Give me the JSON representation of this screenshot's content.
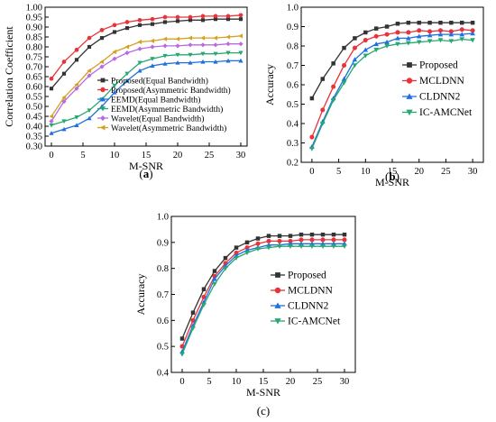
{
  "chart_data": [
    {
      "id": "a",
      "type": "line",
      "panel_label": "(a)",
      "panel_label_bold": "a",
      "xlabel": "M-SNR",
      "ylabel": "Correlation Coefficient",
      "xlim": [
        -1,
        31
      ],
      "ylim": [
        0.3,
        1.0
      ],
      "xticks": [
        0,
        5,
        10,
        15,
        20,
        25,
        30
      ],
      "yticks": [
        0.3,
        0.35,
        0.4,
        0.45,
        0.5,
        0.55,
        0.6,
        0.65,
        0.7,
        0.75,
        0.8,
        0.85,
        0.9,
        0.95,
        1.0
      ],
      "ytick_decimals": 2,
      "legend_position": "bottom-right",
      "x": [
        0,
        2,
        4,
        6,
        8,
        10,
        12,
        14,
        16,
        18,
        20,
        22,
        24,
        26,
        28,
        30
      ],
      "series": [
        {
          "name": "Proposed(Equal Bandwidth)",
          "color": "#333333",
          "marker": "square",
          "values": [
            0.59,
            0.665,
            0.735,
            0.8,
            0.845,
            0.875,
            0.895,
            0.91,
            0.915,
            0.925,
            0.93,
            0.935,
            0.935,
            0.94,
            0.94,
            0.94
          ]
        },
        {
          "name": "Proposed(Asymmetric Bandwidth)",
          "color": "#e8333a",
          "marker": "circle",
          "values": [
            0.64,
            0.725,
            0.785,
            0.845,
            0.885,
            0.91,
            0.925,
            0.935,
            0.94,
            0.95,
            0.95,
            0.95,
            0.955,
            0.955,
            0.955,
            0.96
          ]
        },
        {
          "name": "EEMD(Equal Bandwidth)",
          "color": "#1f6fe0",
          "marker": "triangle-up",
          "values": [
            0.365,
            0.385,
            0.405,
            0.44,
            0.5,
            0.57,
            0.63,
            0.68,
            0.705,
            0.715,
            0.72,
            0.72,
            0.725,
            0.725,
            0.73,
            0.73
          ]
        },
        {
          "name": "EEMD(Asymmetric Bandwidth)",
          "color": "#27a873",
          "marker": "triangle-down",
          "values": [
            0.405,
            0.425,
            0.445,
            0.48,
            0.535,
            0.605,
            0.665,
            0.72,
            0.74,
            0.755,
            0.76,
            0.76,
            0.765,
            0.765,
            0.77,
            0.77
          ]
        },
        {
          "name": "Wavelet(Equal Bandwidth)",
          "color": "#b86be0",
          "marker": "diamond",
          "values": [
            0.425,
            0.525,
            0.59,
            0.655,
            0.7,
            0.74,
            0.77,
            0.79,
            0.8,
            0.805,
            0.805,
            0.81,
            0.81,
            0.81,
            0.815,
            0.815
          ]
        },
        {
          "name": "Wavelet(Asymmetric Bandwidth)",
          "color": "#d6a021",
          "marker": "triangle-left",
          "values": [
            0.45,
            0.545,
            0.61,
            0.68,
            0.725,
            0.775,
            0.8,
            0.825,
            0.83,
            0.84,
            0.84,
            0.845,
            0.845,
            0.845,
            0.85,
            0.855
          ]
        }
      ]
    },
    {
      "id": "b",
      "type": "line",
      "panel_label": "(b)",
      "panel_label_bold": "b",
      "xlabel": "M-SNR",
      "ylabel": "Accuracy",
      "xlim": [
        -2,
        32
      ],
      "ylim": [
        0.2,
        1.0
      ],
      "xticks": [
        0,
        5,
        10,
        15,
        20,
        25,
        30
      ],
      "yticks": [
        0.2,
        0.3,
        0.4,
        0.5,
        0.6,
        0.7,
        0.8,
        0.9,
        1.0
      ],
      "ytick_decimals": 1,
      "legend_position": "right",
      "x": [
        0,
        2,
        4,
        6,
        8,
        10,
        12,
        14,
        16,
        18,
        20,
        22,
        24,
        26,
        28,
        30
      ],
      "series": [
        {
          "name": "Proposed",
          "color": "#333333",
          "marker": "square",
          "values": [
            0.53,
            0.63,
            0.71,
            0.79,
            0.84,
            0.87,
            0.89,
            0.9,
            0.915,
            0.92,
            0.92,
            0.92,
            0.92,
            0.92,
            0.92,
            0.92
          ]
        },
        {
          "name": "MCLDNN",
          "color": "#e8333a",
          "marker": "circle",
          "values": [
            0.33,
            0.47,
            0.59,
            0.7,
            0.79,
            0.83,
            0.85,
            0.86,
            0.87,
            0.87,
            0.88,
            0.875,
            0.88,
            0.875,
            0.885,
            0.88
          ]
        },
        {
          "name": "CLDNN2",
          "color": "#1f6fe0",
          "marker": "triangle-up",
          "values": [
            0.28,
            0.41,
            0.53,
            0.63,
            0.73,
            0.78,
            0.81,
            0.82,
            0.84,
            0.84,
            0.85,
            0.855,
            0.86,
            0.86,
            0.86,
            0.865
          ]
        },
        {
          "name": "IC-AMCNet",
          "color": "#27a873",
          "marker": "triangle-down",
          "values": [
            0.27,
            0.4,
            0.52,
            0.61,
            0.7,
            0.75,
            0.78,
            0.8,
            0.81,
            0.815,
            0.82,
            0.825,
            0.83,
            0.825,
            0.835,
            0.83
          ]
        }
      ]
    },
    {
      "id": "c",
      "type": "line",
      "panel_label": "(c)",
      "panel_label_bold": "",
      "xlabel": "M-SNR",
      "ylabel": "Accuracy",
      "xlim": [
        -2,
        32
      ],
      "ylim": [
        0.4,
        1.0
      ],
      "xticks": [
        0,
        5,
        10,
        15,
        20,
        25,
        30
      ],
      "yticks": [
        0.4,
        0.5,
        0.6,
        0.7,
        0.8,
        0.9,
        1.0
      ],
      "ytick_decimals": 1,
      "legend_position": "right",
      "x": [
        0,
        2,
        4,
        6,
        8,
        10,
        12,
        14,
        16,
        18,
        20,
        22,
        24,
        26,
        28,
        30
      ],
      "series": [
        {
          "name": "Proposed",
          "color": "#333333",
          "marker": "square",
          "values": [
            0.53,
            0.63,
            0.72,
            0.79,
            0.84,
            0.88,
            0.9,
            0.915,
            0.925,
            0.925,
            0.925,
            0.93,
            0.93,
            0.93,
            0.93,
            0.93
          ]
        },
        {
          "name": "MCLDNN",
          "color": "#e8333a",
          "marker": "circle",
          "values": [
            0.5,
            0.6,
            0.69,
            0.77,
            0.82,
            0.86,
            0.88,
            0.895,
            0.905,
            0.905,
            0.905,
            0.91,
            0.91,
            0.91,
            0.91,
            0.91
          ]
        },
        {
          "name": "CLDNN2",
          "color": "#1f6fe0",
          "marker": "triangle-up",
          "values": [
            0.48,
            0.58,
            0.67,
            0.76,
            0.81,
            0.85,
            0.87,
            0.88,
            0.89,
            0.89,
            0.895,
            0.895,
            0.895,
            0.895,
            0.895,
            0.895
          ]
        },
        {
          "name": "IC-AMCNet",
          "color": "#27a873",
          "marker": "triangle-down",
          "values": [
            0.47,
            0.57,
            0.66,
            0.74,
            0.8,
            0.84,
            0.86,
            0.875,
            0.88,
            0.885,
            0.885,
            0.885,
            0.885,
            0.885,
            0.885,
            0.885
          ]
        }
      ]
    }
  ]
}
